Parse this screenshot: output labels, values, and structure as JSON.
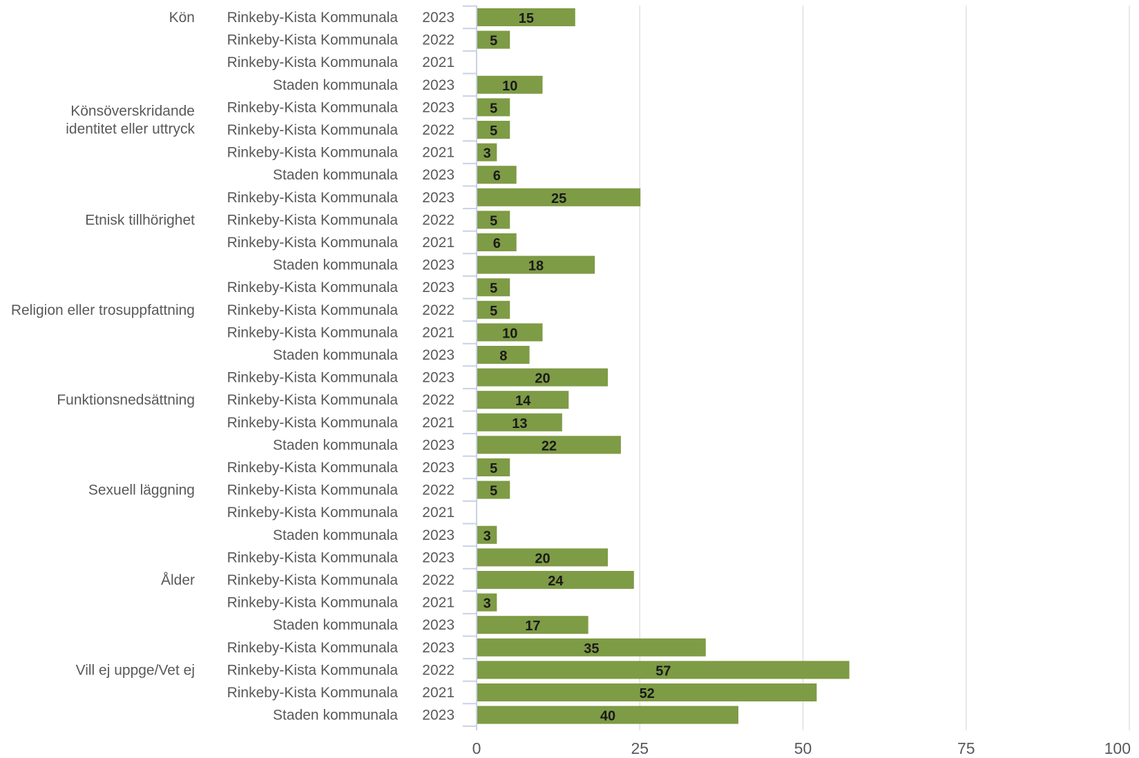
{
  "chart_data": {
    "type": "bar",
    "orientation": "horizontal",
    "xlim": [
      0,
      100
    ],
    "x_ticks": [
      "0",
      "25",
      "50",
      "75",
      "100"
    ],
    "grid": true,
    "bar_color": "#7e9b45",
    "groups": [
      {
        "label": [
          "Kön"
        ],
        "rows": [
          {
            "location": "Rinkeby-Kista Kommunala",
            "year": "2023",
            "value": 15
          },
          {
            "location": "Rinkeby-Kista Kommunala",
            "year": "2022",
            "value": 5
          },
          {
            "location": "Rinkeby-Kista Kommunala",
            "year": "2021",
            "value": null
          },
          {
            "location": "Staden kommunala",
            "year": "2023",
            "value": 10
          }
        ]
      },
      {
        "label": [
          "Könsöverskridande",
          "identitet eller uttryck"
        ],
        "rows": [
          {
            "location": "Rinkeby-Kista Kommunala",
            "year": "2023",
            "value": 5
          },
          {
            "location": "Rinkeby-Kista Kommunala",
            "year": "2022",
            "value": 5
          },
          {
            "location": "Rinkeby-Kista Kommunala",
            "year": "2021",
            "value": 3
          },
          {
            "location": "Staden kommunala",
            "year": "2023",
            "value": 6
          }
        ]
      },
      {
        "label": [
          "Etnisk tillhörighet"
        ],
        "rows": [
          {
            "location": "Rinkeby-Kista Kommunala",
            "year": "2023",
            "value": 25
          },
          {
            "location": "Rinkeby-Kista Kommunala",
            "year": "2022",
            "value": 5
          },
          {
            "location": "Rinkeby-Kista Kommunala",
            "year": "2021",
            "value": 6
          },
          {
            "location": "Staden kommunala",
            "year": "2023",
            "value": 18
          }
        ]
      },
      {
        "label": [
          "Religion eller trosuppfattning"
        ],
        "rows": [
          {
            "location": "Rinkeby-Kista Kommunala",
            "year": "2023",
            "value": 5
          },
          {
            "location": "Rinkeby-Kista Kommunala",
            "year": "2022",
            "value": 5
          },
          {
            "location": "Rinkeby-Kista Kommunala",
            "year": "2021",
            "value": 10
          },
          {
            "location": "Staden kommunala",
            "year": "2023",
            "value": 8
          }
        ]
      },
      {
        "label": [
          "Funktionsnedsättning"
        ],
        "rows": [
          {
            "location": "Rinkeby-Kista Kommunala",
            "year": "2023",
            "value": 20
          },
          {
            "location": "Rinkeby-Kista Kommunala",
            "year": "2022",
            "value": 14
          },
          {
            "location": "Rinkeby-Kista Kommunala",
            "year": "2021",
            "value": 13
          },
          {
            "location": "Staden kommunala",
            "year": "2023",
            "value": 22
          }
        ]
      },
      {
        "label": [
          "Sexuell läggning"
        ],
        "rows": [
          {
            "location": "Rinkeby-Kista Kommunala",
            "year": "2023",
            "value": 5
          },
          {
            "location": "Rinkeby-Kista Kommunala",
            "year": "2022",
            "value": 5
          },
          {
            "location": "Rinkeby-Kista Kommunala",
            "year": "2021",
            "value": null
          },
          {
            "location": "Staden kommunala",
            "year": "2023",
            "value": 3
          }
        ]
      },
      {
        "label": [
          "Ålder"
        ],
        "rows": [
          {
            "location": "Rinkeby-Kista Kommunala",
            "year": "2023",
            "value": 20
          },
          {
            "location": "Rinkeby-Kista Kommunala",
            "year": "2022",
            "value": 24
          },
          {
            "location": "Rinkeby-Kista Kommunala",
            "year": "2021",
            "value": 3
          },
          {
            "location": "Staden kommunala",
            "year": "2023",
            "value": 17
          }
        ]
      },
      {
        "label": [
          "Vill ej uppge/Vet ej"
        ],
        "rows": [
          {
            "location": "Rinkeby-Kista Kommunala",
            "year": "2023",
            "value": 35
          },
          {
            "location": "Rinkeby-Kista Kommunala",
            "year": "2022",
            "value": 57
          },
          {
            "location": "Rinkeby-Kista Kommunala",
            "year": "2021",
            "value": 52
          },
          {
            "location": "Staden kommunala",
            "year": "2023",
            "value": 40
          }
        ]
      }
    ]
  }
}
